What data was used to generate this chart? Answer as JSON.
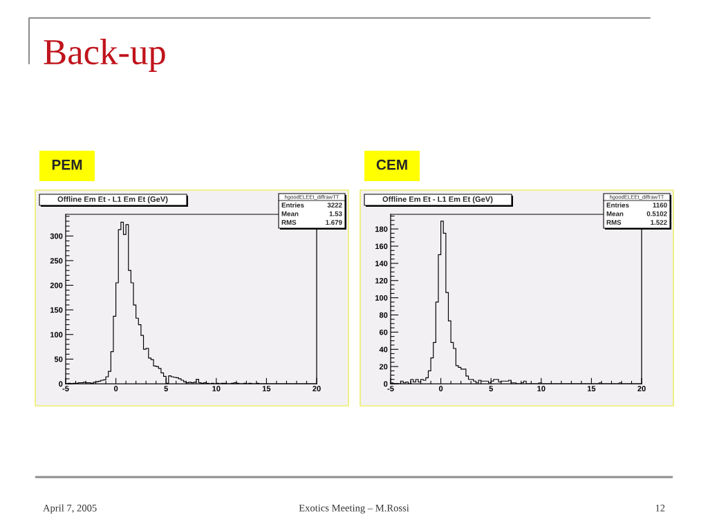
{
  "chart_data": [
    {
      "type": "other",
      "title": "Back-up"
    },
    {
      "type": "histogram",
      "title": "Offline Em Et - L1 Em Et (GeV)",
      "subtitle": "PEM",
      "color": "#000000",
      "bins": [
        -5,
        -4.75,
        -4.5,
        -4.25,
        -4,
        -3.75,
        -3.5,
        -3.25,
        -3,
        -2.75,
        -2.5,
        -2.25,
        -2,
        -1.75,
        -1.5,
        -1.25,
        -1,
        -0.75,
        -0.5,
        -0.25,
        0,
        0.25,
        0.5,
        0.75,
        1,
        1.25,
        1.5,
        1.75,
        2,
        2.25,
        2.5,
        2.75,
        3,
        3.25,
        3.5,
        3.75,
        4,
        4.25,
        4.5,
        4.75,
        5,
        5.25,
        5.5,
        5.75,
        6,
        6.25,
        6.5,
        6.75,
        7,
        7.25,
        7.5,
        7.75,
        8,
        8.25,
        8.5,
        8.75,
        9,
        9.25,
        9.5,
        9.75,
        10,
        10.25,
        10.5,
        10.75,
        11,
        11.25,
        11.5,
        11.75,
        12,
        12.25,
        12.5,
        12.75,
        13,
        13.25,
        13.5,
        13.75,
        14,
        14.25,
        14.5,
        14.75,
        15,
        15.25,
        15.5,
        15.75,
        16,
        16.25,
        16.5,
        16.75,
        17,
        17.25,
        17.5,
        17.75,
        18,
        18.25,
        18.5,
        18.75,
        19,
        19.25,
        19.5,
        19.75,
        20
      ],
      "values": [
        0,
        1,
        0,
        1,
        1,
        2,
        2,
        3,
        2,
        2,
        1,
        3,
        4,
        5,
        7,
        8,
        14,
        25,
        65,
        137,
        205,
        313,
        328,
        303,
        323,
        230,
        205,
        160,
        133,
        120,
        98,
        70,
        72,
        52,
        49,
        36,
        35,
        31,
        22,
        15,
        1,
        16,
        14,
        13,
        12,
        10,
        7,
        4,
        2,
        3,
        2,
        3,
        9,
        2,
        1,
        2,
        1,
        0,
        1,
        0,
        1,
        0,
        1,
        1,
        0,
        0,
        1,
        2,
        1,
        0,
        0,
        1,
        0,
        1,
        0,
        0,
        1,
        0,
        0,
        0,
        0,
        0,
        0,
        0,
        0,
        0,
        0,
        0,
        0,
        0,
        0,
        0,
        0,
        0,
        0,
        0,
        0,
        0,
        0,
        0
      ],
      "xlim": [
        -5,
        20
      ],
      "ylim": [
        0,
        344
      ],
      "xticks": [
        -5,
        {
          "value": -4,
          "label": null
        },
        {
          "value": -3,
          "label": null
        },
        {
          "value": -2,
          "label": null
        },
        {
          "value": -1,
          "label": null
        },
        0,
        {
          "value": 1,
          "label": null
        },
        {
          "value": 2,
          "label": null
        },
        {
          "value": 3,
          "label": null
        },
        {
          "value": 4,
          "label": null
        },
        5,
        {
          "value": 6,
          "label": null
        },
        {
          "value": 7,
          "label": null
        },
        {
          "value": 8,
          "label": null
        },
        {
          "value": 9,
          "label": null
        },
        10,
        {
          "value": 11,
          "label": null
        },
        {
          "value": 12,
          "label": null
        },
        {
          "value": 13,
          "label": null
        },
        {
          "value": 14,
          "label": null
        },
        15,
        {
          "value": 16,
          "label": null
        },
        {
          "value": 17,
          "label": null
        },
        {
          "value": 18,
          "label": null
        },
        {
          "value": 19,
          "label": null
        },
        20
      ],
      "yticks": [
        0,
        {
          "value": 10,
          "label": null
        },
        {
          "value": 20,
          "label": null
        },
        {
          "value": 30,
          "label": null
        },
        {
          "value": 40,
          "label": null
        },
        50,
        {
          "value": 60,
          "label": null
        },
        {
          "value": 70,
          "label": null
        },
        {
          "value": 80,
          "label": null
        },
        {
          "value": 90,
          "label": null
        },
        100,
        {
          "value": 110,
          "label": null
        },
        {
          "value": 120,
          "label": null
        },
        {
          "value": 130,
          "label": null
        },
        {
          "value": 140,
          "label": null
        },
        150,
        {
          "value": 160,
          "label": null
        },
        {
          "value": 170,
          "label": null
        },
        {
          "value": 180,
          "label": null
        },
        {
          "value": 190,
          "label": null
        },
        200,
        {
          "value": 210,
          "label": null
        },
        {
          "value": 220,
          "label": null
        },
        {
          "value": 230,
          "label": null
        },
        {
          "value": 240,
          "label": null
        },
        250,
        {
          "value": 260,
          "label": null
        },
        {
          "value": 270,
          "label": null
        },
        {
          "value": 280,
          "label": null
        },
        {
          "value": 290,
          "label": null
        },
        300,
        {
          "value": 310,
          "label": null
        },
        {
          "value": 320,
          "label": null
        },
        {
          "value": 330,
          "label": null
        },
        {
          "value": 340,
          "label": null
        }
      ],
      "annotations": [
        "hgoodELEEt_diffrawTT",
        "Entries",
        "3222",
        "Mean",
        "1.53",
        "RMS",
        "1.679"
      ]
    },
    {
      "type": "histogram",
      "title": "Offline Em Et - L1 Em Et (GeV)",
      "subtitle": "CEM",
      "color": "#000000",
      "bins": [
        -5,
        -4.75,
        -4.5,
        -4.25,
        -4,
        -3.75,
        -3.5,
        -3.25,
        -3,
        -2.75,
        -2.5,
        -2.25,
        -2,
        -1.75,
        -1.5,
        -1.25,
        -1,
        -0.75,
        -0.5,
        -0.25,
        0,
        0.25,
        0.5,
        0.75,
        1,
        1.25,
        1.5,
        1.75,
        2,
        2.25,
        2.5,
        2.75,
        3,
        3.25,
        3.5,
        3.75,
        4,
        4.25,
        4.5,
        4.75,
        5,
        5.25,
        5.5,
        5.75,
        6,
        6.25,
        6.5,
        6.75,
        7,
        7.25,
        7.5,
        7.75,
        8,
        8.25,
        8.5,
        8.75,
        9,
        9.25,
        9.5,
        9.75,
        10,
        10.25,
        10.5,
        10.75,
        11,
        11.25,
        11.5,
        11.75,
        12,
        12.25,
        12.5,
        12.75,
        13,
        13.25,
        13.5,
        13.75,
        14,
        14.25,
        14.5,
        14.75,
        15,
        15.25,
        15.5,
        15.75,
        16,
        16.25,
        16.5,
        16.75,
        17,
        17.25,
        17.5,
        17.75,
        18,
        18.25,
        18.5,
        18.75,
        19,
        19.25,
        19.5,
        19.75,
        20
      ],
      "values": [
        1,
        0,
        0,
        0,
        3,
        1,
        2,
        0,
        5,
        2,
        5,
        2,
        5,
        4,
        7,
        15,
        30,
        48,
        95,
        150,
        189,
        175,
        106,
        73,
        48,
        41,
        21,
        19,
        17,
        17,
        9,
        5,
        5,
        3,
        1,
        4,
        3,
        3,
        3,
        1,
        3,
        5,
        5,
        2,
        3,
        3,
        3,
        4,
        1,
        1,
        0,
        0,
        1,
        3,
        0,
        0,
        0,
        0,
        0,
        1,
        0,
        0,
        0,
        0,
        0,
        0,
        0,
        0,
        0,
        0,
        0,
        0,
        0,
        0,
        0,
        0,
        0,
        0,
        0,
        0,
        0,
        0,
        0,
        1,
        0,
        0,
        0,
        0,
        0,
        0,
        0,
        1,
        0,
        0,
        0,
        0,
        0,
        0,
        0,
        0
      ],
      "xlim": [
        -5,
        20
      ],
      "ylim": [
        0,
        197
      ],
      "xticks": [
        -5,
        {
          "value": -4,
          "label": null
        },
        {
          "value": -3,
          "label": null
        },
        {
          "value": -2,
          "label": null
        },
        {
          "value": -1,
          "label": null
        },
        0,
        {
          "value": 1,
          "label": null
        },
        {
          "value": 2,
          "label": null
        },
        {
          "value": 3,
          "label": null
        },
        {
          "value": 4,
          "label": null
        },
        5,
        {
          "value": 6,
          "label": null
        },
        {
          "value": 7,
          "label": null
        },
        {
          "value": 8,
          "label": null
        },
        {
          "value": 9,
          "label": null
        },
        10,
        {
          "value": 11,
          "label": null
        },
        {
          "value": 12,
          "label": null
        },
        {
          "value": 13,
          "label": null
        },
        {
          "value": 14,
          "label": null
        },
        15,
        {
          "value": 16,
          "label": null
        },
        {
          "value": 17,
          "label": null
        },
        {
          "value": 18,
          "label": null
        },
        {
          "value": 19,
          "label": null
        },
        20
      ],
      "yticks": [
        0,
        {
          "value": 5,
          "label": null
        },
        {
          "value": 10,
          "label": null
        },
        {
          "value": 15,
          "label": null
        },
        20,
        {
          "value": 25,
          "label": null
        },
        {
          "value": 30,
          "label": null
        },
        {
          "value": 35,
          "label": null
        },
        40,
        {
          "value": 45,
          "label": null
        },
        {
          "value": 50,
          "label": null
        },
        {
          "value": 55,
          "label": null
        },
        60,
        {
          "value": 65,
          "label": null
        },
        {
          "value": 70,
          "label": null
        },
        {
          "value": 75,
          "label": null
        },
        80,
        {
          "value": 85,
          "label": null
        },
        {
          "value": 90,
          "label": null
        },
        {
          "value": 95,
          "label": null
        },
        100,
        {
          "value": 105,
          "label": null
        },
        {
          "value": 110,
          "label": null
        },
        {
          "value": 115,
          "label": null
        },
        120,
        {
          "value": 125,
          "label": null
        },
        {
          "value": 130,
          "label": null
        },
        {
          "value": 135,
          "label": null
        },
        140,
        {
          "value": 145,
          "label": null
        },
        {
          "value": 150,
          "label": null
        },
        {
          "value": 155,
          "label": null
        },
        160,
        {
          "value": 165,
          "label": null
        },
        {
          "value": 170,
          "label": null
        },
        {
          "value": 175,
          "label": null
        },
        180,
        {
          "value": 185,
          "label": null
        },
        {
          "value": 190,
          "label": null
        },
        {
          "value": 195,
          "label": null
        }
      ],
      "annotations": [
        "hgoodELEEt_diffrawTT",
        "Entries",
        "1160",
        "Mean",
        "0.5102",
        "RMS",
        "1.522"
      ]
    },
    {
      "type": "other",
      "annotations": [
        "April 7, 2005",
        "Exotics Meeting – M.Rossi",
        "12"
      ]
    }
  ]
}
